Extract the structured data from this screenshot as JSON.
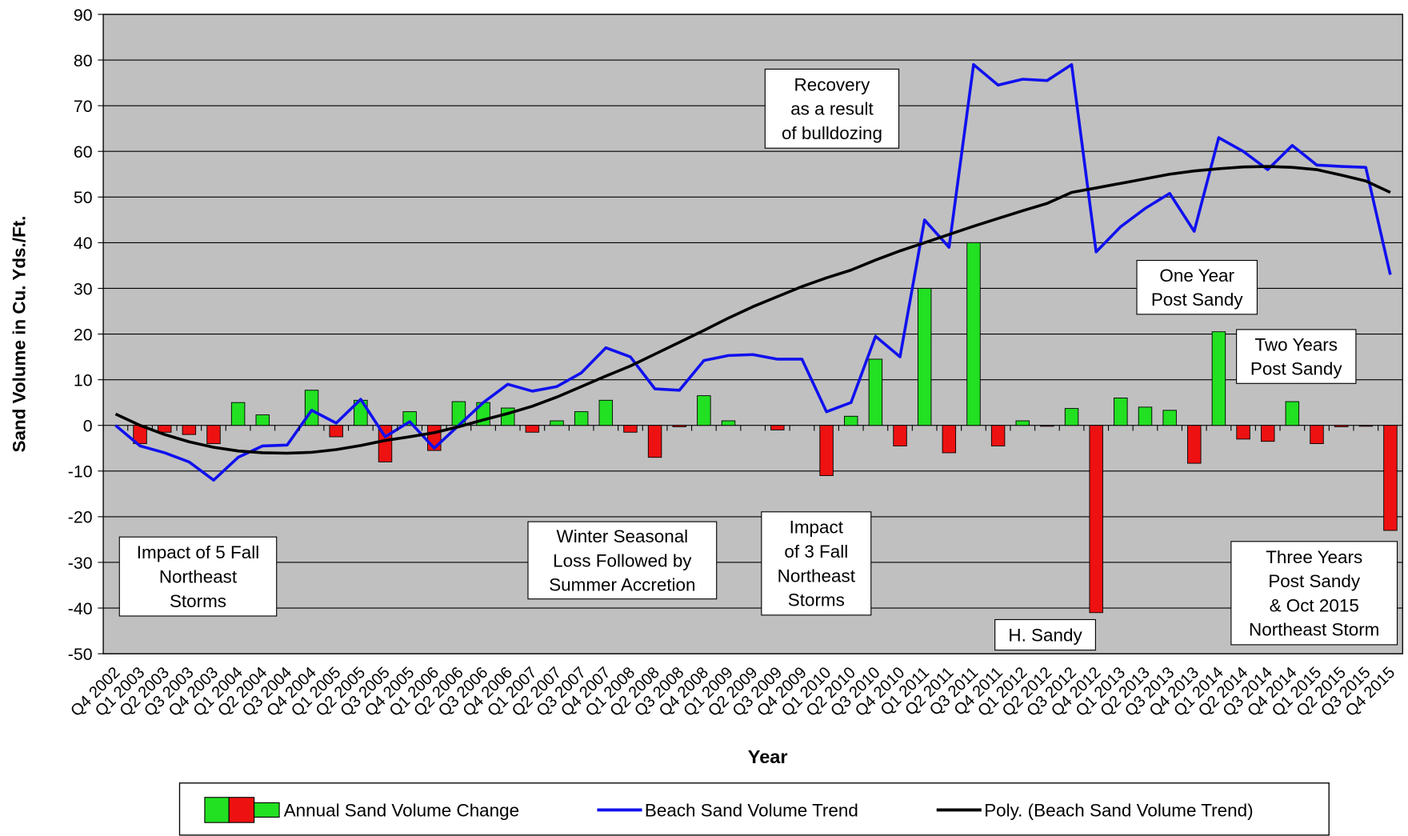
{
  "chart_data": {
    "type": "combo",
    "x_label": "Year",
    "y_label": "Sand Volume in Cu. Yds./Ft.",
    "categories": [
      "Q4 2002",
      "Q1 2003",
      "Q2 2003",
      "Q3 2003",
      "Q4 2003",
      "Q1 2004",
      "Q2 2004",
      "Q3 2004",
      "Q4 2004",
      "Q1 2005",
      "Q2 2005",
      "Q3 2005",
      "Q4 2005",
      "Q1 2006",
      "Q2 2006",
      "Q3 2006",
      "Q4 2006",
      "Q1 2007",
      "Q2 2007",
      "Q3 2007",
      "Q4 2007",
      "Q1 2008",
      "Q2 2008",
      "Q3 2008",
      "Q4 2008",
      "Q1 2009",
      "Q2 2009",
      "Q3 2009",
      "Q4 2009",
      "Q1 2010",
      "Q2 2010",
      "Q3 2010",
      "Q4 2010",
      "Q1 2011",
      "Q2 2011",
      "Q3 2011",
      "Q4 2011",
      "Q1 2012",
      "Q2 2012",
      "Q3 2012",
      "Q4 2012",
      "Q1 2013",
      "Q2 2013",
      "Q3 2013",
      "Q4 2013",
      "Q1 2014",
      "Q2 2014",
      "Q3 2014",
      "Q4 2014",
      "Q1 2015",
      "Q2 2015",
      "Q3 2015",
      "Q4 2015"
    ],
    "series": [
      {
        "name": "Annual Sand Volume Change",
        "type": "bar",
        "color": "#22e022",
        "negative_color": "#ee1111",
        "values": [
          0,
          -4,
          -1.5,
          -2,
          -4,
          5,
          2.3,
          0,
          7.7,
          -2.5,
          5.5,
          -8,
          3,
          -5.5,
          5.2,
          5,
          3.8,
          -1.5,
          1,
          3,
          5.5,
          -1.5,
          -7,
          -0.3,
          6.5,
          1,
          0,
          -1,
          0,
          -11,
          2,
          14.5,
          -4.5,
          30,
          -6,
          40,
          -4.5,
          1,
          -0.2,
          3.7,
          -41,
          6,
          4,
          3.3,
          -8.3,
          20.5,
          -3,
          -3.5,
          5.2,
          -4,
          -0.3,
          -0.2,
          -23
        ]
      },
      {
        "name": "Beach Sand Volume Trend",
        "type": "line",
        "color": "#1010ee",
        "values": [
          0,
          -4.5,
          -6,
          -8,
          -12,
          -7,
          -4.5,
          -4.3,
          3.3,
          0.5,
          5.7,
          -2.5,
          0.8,
          -5,
          0,
          5,
          9,
          7.5,
          8.5,
          11.5,
          17,
          15,
          8,
          7.7,
          14.2,
          15.3,
          15.5,
          14.5,
          14.5,
          3,
          5,
          19.5,
          15,
          45,
          39,
          79,
          74.5,
          75.8,
          75.5,
          79,
          38,
          43.5,
          47.5,
          50.8,
          42.5,
          63,
          60,
          56,
          61.3,
          57,
          56.7,
          56.5,
          33
        ]
      },
      {
        "name": "Poly. (Beach Sand Volume Trend)",
        "type": "line",
        "color": "#000000",
        "values": [
          2.5,
          0,
          -2,
          -3.6,
          -4.8,
          -5.6,
          -6,
          -6.1,
          -5.9,
          -5.3,
          -4.4,
          -3.3,
          -2.5,
          -1.6,
          -0.3,
          1.2,
          2.6,
          4.2,
          6.2,
          8.5,
          10.8,
          13,
          15.6,
          18.2,
          20.8,
          23.5,
          26,
          28.2,
          30.4,
          32.3,
          34,
          36.2,
          38.2,
          40,
          41.8,
          43.6,
          45.3,
          47,
          48.6,
          51,
          52,
          53,
          54,
          55,
          55.7,
          56.2,
          56.6,
          56.7,
          56.5,
          56,
          54.8,
          53.5,
          51
        ]
      }
    ],
    "ylim": [
      -50,
      90
    ],
    "yticks": [
      -50,
      -40,
      -30,
      -20,
      -10,
      0,
      10,
      20,
      30,
      40,
      50,
      60,
      70,
      80,
      90
    ],
    "grid": true,
    "legend": "bottom",
    "annotations": [
      {
        "lines": [
          "Impact of 5 Fall",
          "Northeast",
          "Storms"
        ]
      },
      {
        "lines": [
          "Winter Seasonal",
          "Loss Followed by",
          "Summer Accretion"
        ]
      },
      {
        "lines": [
          "Impact",
          "of 3 Fall",
          "Northeast",
          "Storms"
        ]
      },
      {
        "lines": [
          "Recovery",
          "as a result",
          "of bulldozing"
        ]
      },
      {
        "lines": [
          "H. Sandy"
        ]
      },
      {
        "lines": [
          "One Year",
          "Post Sandy"
        ]
      },
      {
        "lines": [
          "Two Years",
          "Post Sandy"
        ]
      },
      {
        "lines": [
          "Three Years",
          "Post Sandy",
          "& Oct 2015",
          "Northeast Storm"
        ]
      }
    ]
  }
}
